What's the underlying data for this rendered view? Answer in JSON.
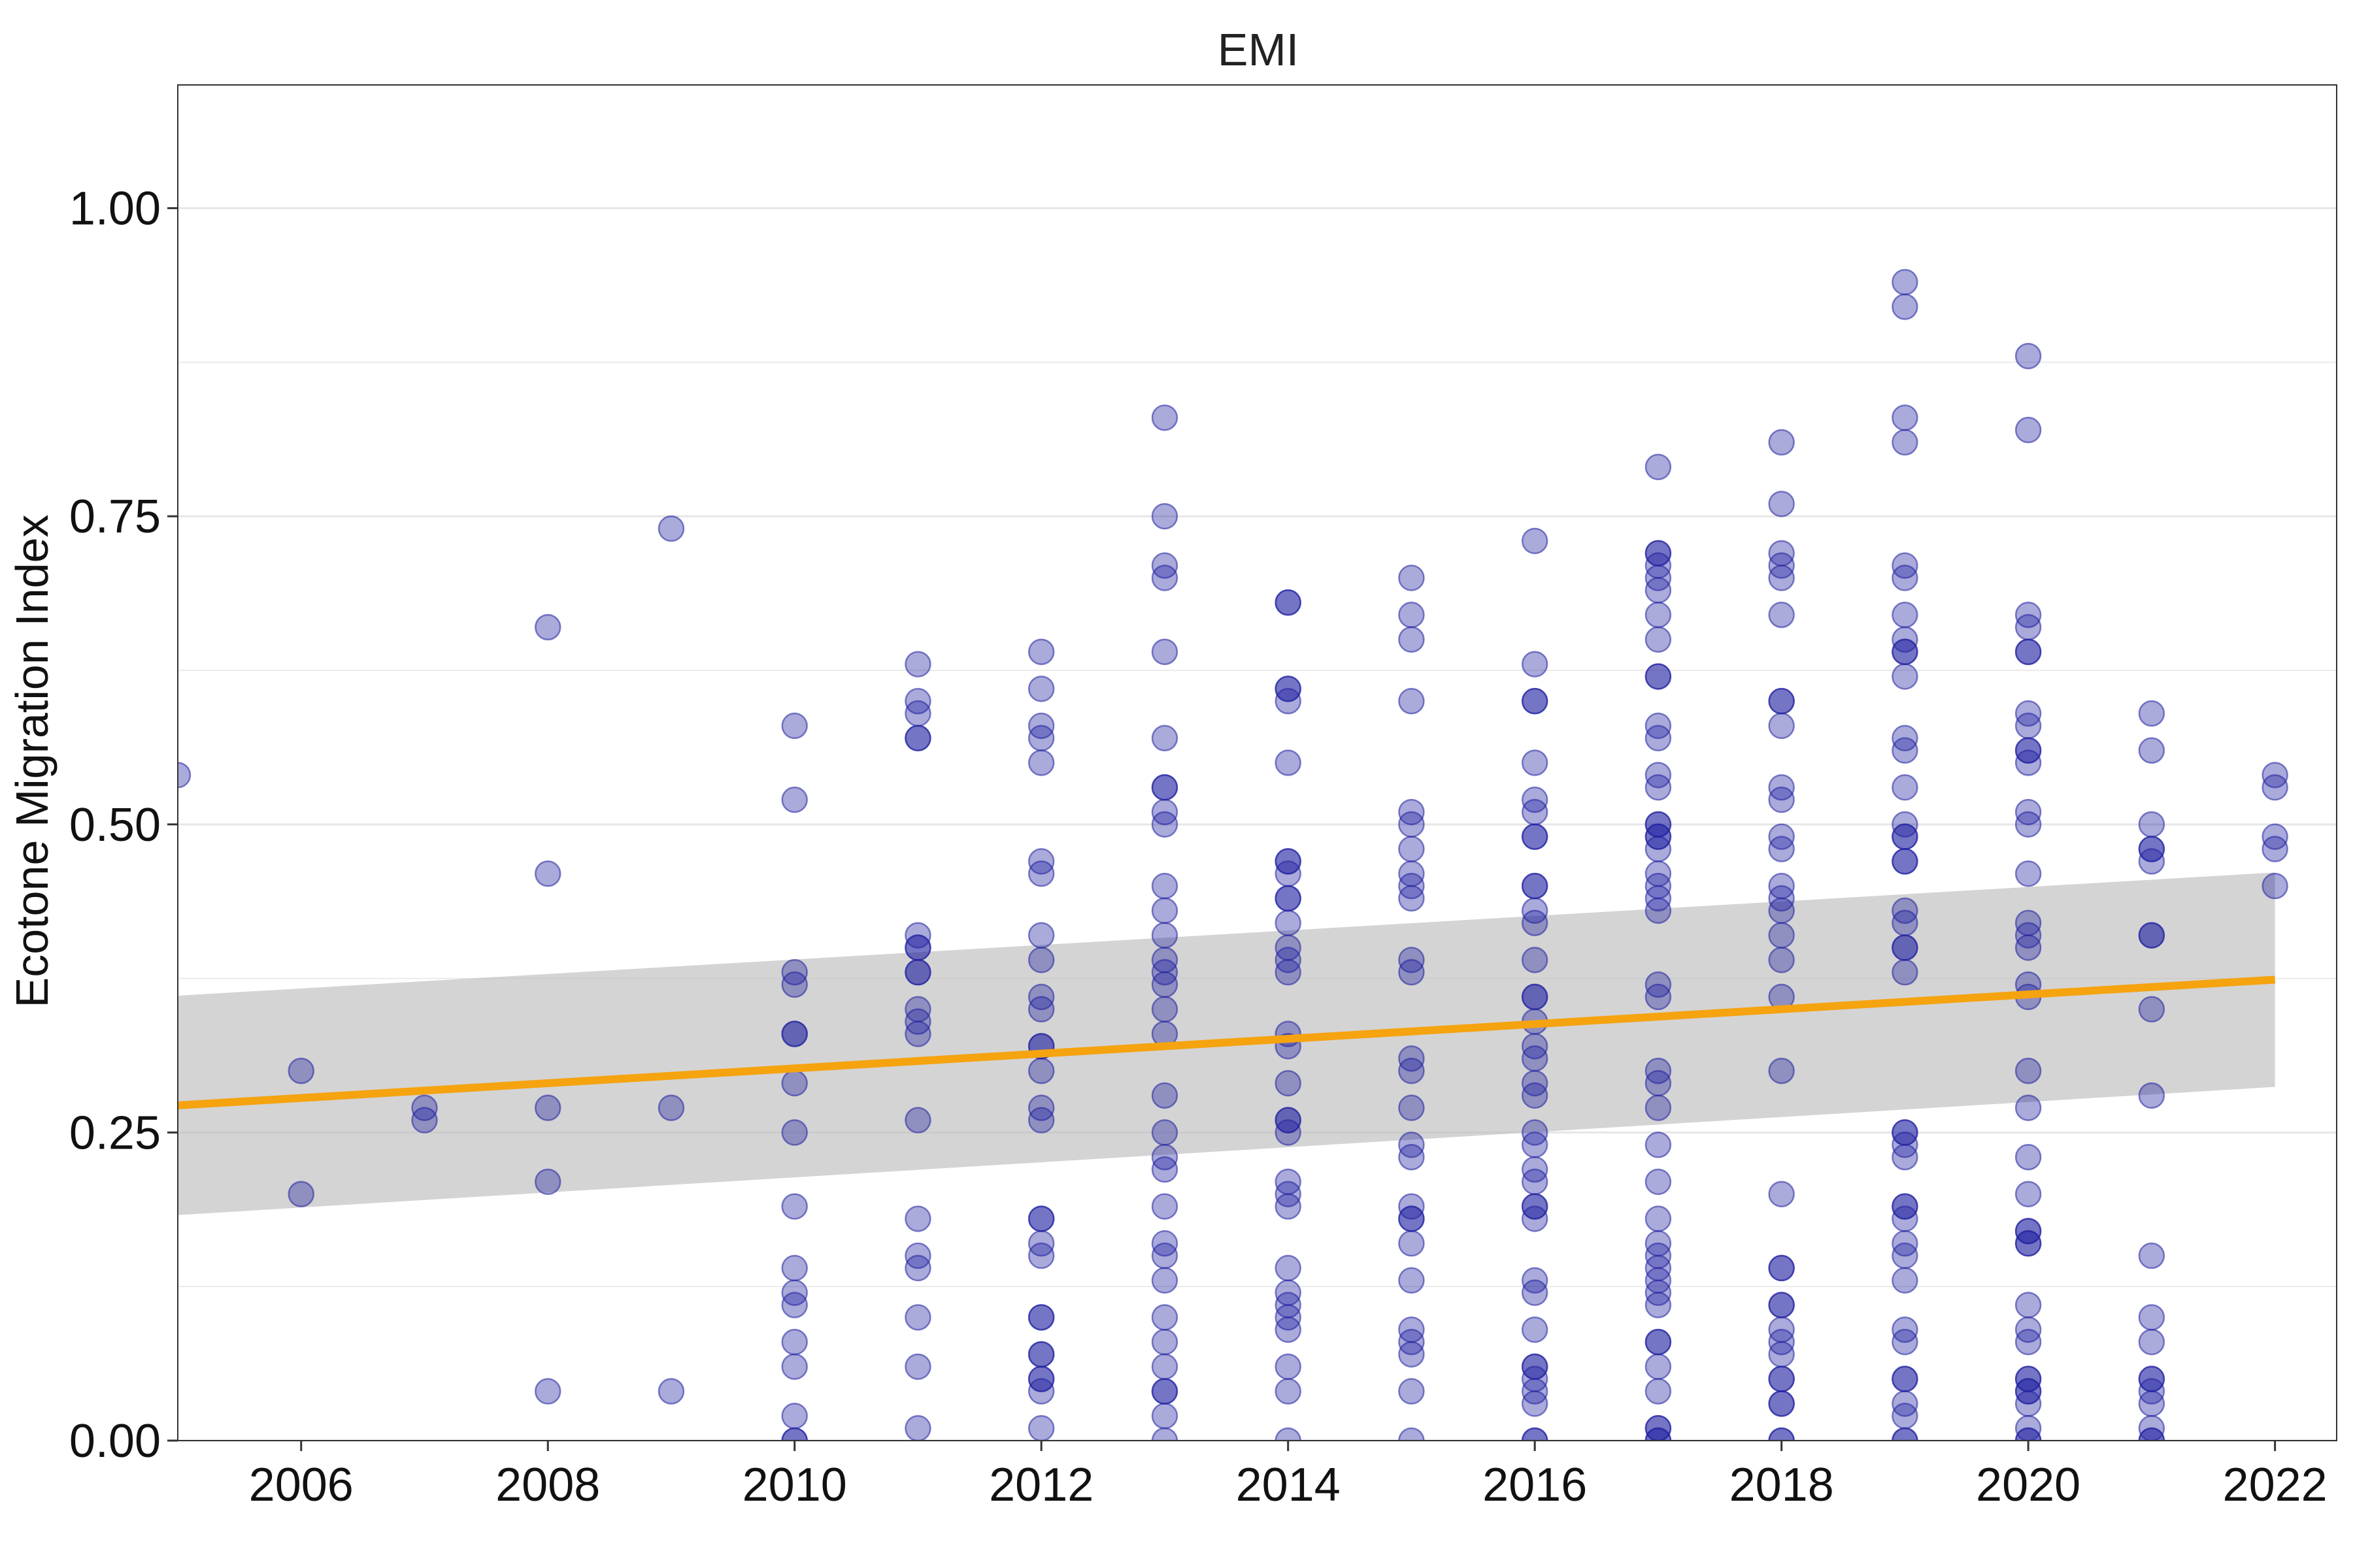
{
  "chart_data": {
    "type": "scatter",
    "title": "EMI",
    "xlabel": "",
    "ylabel": "Ecotone Migration Index",
    "xlim": [
      2005,
      2022.5
    ],
    "ylim": [
      0,
      1.1
    ],
    "x_ticks": [
      2006,
      2008,
      2010,
      2012,
      2014,
      2016,
      2018,
      2020,
      2022
    ],
    "y_ticks": [
      0.0,
      0.25,
      0.5,
      0.75,
      1.0
    ],
    "y_tick_labels": [
      "0.00",
      "0.25",
      "0.50",
      "0.75",
      "1.00"
    ],
    "grid": "horizontal",
    "legend": "none",
    "colors": {
      "points": "#2020a0",
      "trend_line": "#f5a30f",
      "confidence_band": "#bdbdbd",
      "grid": "#e6e6e6",
      "panel_border": "#333333"
    },
    "point_opacity": 0.38,
    "trend": {
      "x": [
        2005,
        2022
      ],
      "y": [
        0.272,
        0.374
      ],
      "ci_lower": [
        0.183,
        0.287
      ],
      "ci_upper": [
        0.361,
        0.461
      ]
    },
    "points": [
      {
        "x": 2005,
        "y": [
          0.54
        ]
      },
      {
        "x": 2006,
        "y": [
          0.3,
          0.2
        ]
      },
      {
        "x": 2007,
        "y": [
          0.27,
          0.26
        ]
      },
      {
        "x": 2008,
        "y": [
          0.66,
          0.46,
          0.27,
          0.21,
          0.04
        ]
      },
      {
        "x": 2009,
        "y": [
          0.74,
          0.27,
          0.04
        ]
      },
      {
        "x": 2010,
        "y": [
          0.58,
          0.52,
          0.38,
          0.37,
          0.33,
          0.33,
          0.29,
          0.25,
          0.19,
          0.14,
          0.12,
          0.11,
          0.08,
          0.06,
          0.02,
          0.0,
          0.0
        ]
      },
      {
        "x": 2011,
        "y": [
          0.63,
          0.6,
          0.59,
          0.57,
          0.57,
          0.41,
          0.4,
          0.4,
          0.38,
          0.38,
          0.35,
          0.34,
          0.33,
          0.26,
          0.18,
          0.15,
          0.14,
          0.1,
          0.06,
          0.01
        ]
      },
      {
        "x": 2012,
        "y": [
          0.64,
          0.61,
          0.58,
          0.57,
          0.55,
          0.47,
          0.46,
          0.41,
          0.39,
          0.36,
          0.35,
          0.32,
          0.32,
          0.3,
          0.27,
          0.26,
          0.18,
          0.18,
          0.16,
          0.15,
          0.1,
          0.1,
          0.07,
          0.07,
          0.05,
          0.05,
          0.04,
          0.01
        ]
      },
      {
        "x": 2013,
        "y": [
          0.83,
          0.75,
          0.71,
          0.7,
          0.64,
          0.57,
          0.53,
          0.53,
          0.51,
          0.5,
          0.45,
          0.43,
          0.41,
          0.39,
          0.38,
          0.37,
          0.35,
          0.33,
          0.28,
          0.25,
          0.23,
          0.22,
          0.19,
          0.16,
          0.15,
          0.13,
          0.1,
          0.08,
          0.06,
          0.04,
          0.04,
          0.02,
          0.0
        ]
      },
      {
        "x": 2014,
        "y": [
          0.68,
          0.68,
          0.61,
          0.61,
          0.6,
          0.55,
          0.47,
          0.47,
          0.46,
          0.44,
          0.44,
          0.42,
          0.4,
          0.39,
          0.38,
          0.33,
          0.32,
          0.29,
          0.26,
          0.26,
          0.25,
          0.21,
          0.2,
          0.19,
          0.14,
          0.12,
          0.11,
          0.1,
          0.09,
          0.06,
          0.04,
          0.0
        ]
      },
      {
        "x": 2015,
        "y": [
          0.7,
          0.67,
          0.65,
          0.6,
          0.51,
          0.5,
          0.48,
          0.46,
          0.45,
          0.44,
          0.39,
          0.38,
          0.31,
          0.3,
          0.27,
          0.24,
          0.23,
          0.19,
          0.18,
          0.18,
          0.16,
          0.13,
          0.09,
          0.08,
          0.07,
          0.04,
          0.0
        ]
      },
      {
        "x": 2016,
        "y": [
          0.73,
          0.63,
          0.6,
          0.6,
          0.55,
          0.52,
          0.51,
          0.49,
          0.49,
          0.45,
          0.45,
          0.43,
          0.42,
          0.39,
          0.36,
          0.36,
          0.34,
          0.32,
          0.31,
          0.29,
          0.28,
          0.25,
          0.24,
          0.22,
          0.21,
          0.19,
          0.19,
          0.18,
          0.13,
          0.12,
          0.09,
          0.06,
          0.06,
          0.05,
          0.04,
          0.03,
          0.0,
          0.0
        ]
      },
      {
        "x": 2017,
        "y": [
          0.79,
          0.72,
          0.72,
          0.71,
          0.7,
          0.69,
          0.67,
          0.65,
          0.62,
          0.62,
          0.58,
          0.57,
          0.54,
          0.53,
          0.5,
          0.5,
          0.49,
          0.49,
          0.48,
          0.46,
          0.45,
          0.44,
          0.43,
          0.37,
          0.36,
          0.3,
          0.29,
          0.27,
          0.24,
          0.21,
          0.18,
          0.16,
          0.15,
          0.14,
          0.13,
          0.12,
          0.11,
          0.08,
          0.08,
          0.06,
          0.04,
          0.01,
          0.01,
          0.0,
          0.0
        ]
      },
      {
        "x": 2018,
        "y": [
          0.81,
          0.76,
          0.72,
          0.71,
          0.7,
          0.67,
          0.6,
          0.6,
          0.58,
          0.53,
          0.52,
          0.49,
          0.48,
          0.45,
          0.44,
          0.43,
          0.41,
          0.39,
          0.36,
          0.3,
          0.2,
          0.14,
          0.14,
          0.11,
          0.11,
          0.09,
          0.08,
          0.07,
          0.05,
          0.05,
          0.03,
          0.03,
          0.0,
          0.0
        ]
      },
      {
        "x": 2019,
        "y": [
          0.94,
          0.92,
          0.83,
          0.81,
          0.71,
          0.7,
          0.67,
          0.65,
          0.64,
          0.64,
          0.62,
          0.57,
          0.56,
          0.53,
          0.5,
          0.49,
          0.49,
          0.47,
          0.47,
          0.43,
          0.42,
          0.4,
          0.4,
          0.38,
          0.25,
          0.25,
          0.24,
          0.23,
          0.19,
          0.19,
          0.18,
          0.16,
          0.15,
          0.13,
          0.09,
          0.08,
          0.05,
          0.05,
          0.03,
          0.02,
          0.0,
          0.0
        ]
      },
      {
        "x": 2020,
        "y": [
          0.88,
          0.82,
          0.67,
          0.66,
          0.64,
          0.64,
          0.59,
          0.58,
          0.56,
          0.56,
          0.55,
          0.51,
          0.5,
          0.46,
          0.42,
          0.41,
          0.4,
          0.37,
          0.36,
          0.3,
          0.27,
          0.23,
          0.2,
          0.17,
          0.17,
          0.16,
          0.16,
          0.11,
          0.09,
          0.08,
          0.05,
          0.05,
          0.04,
          0.04,
          0.03,
          0.01,
          0.0,
          0.0
        ]
      },
      {
        "x": 2021,
        "y": [
          0.59,
          0.56,
          0.5,
          0.48,
          0.48,
          0.47,
          0.41,
          0.41,
          0.35,
          0.28,
          0.15,
          0.1,
          0.08,
          0.05,
          0.05,
          0.04,
          0.03,
          0.01,
          0.0,
          0.0
        ]
      },
      {
        "x": 2022,
        "y": [
          0.54,
          0.53,
          0.49,
          0.48,
          0.45
        ]
      }
    ]
  }
}
